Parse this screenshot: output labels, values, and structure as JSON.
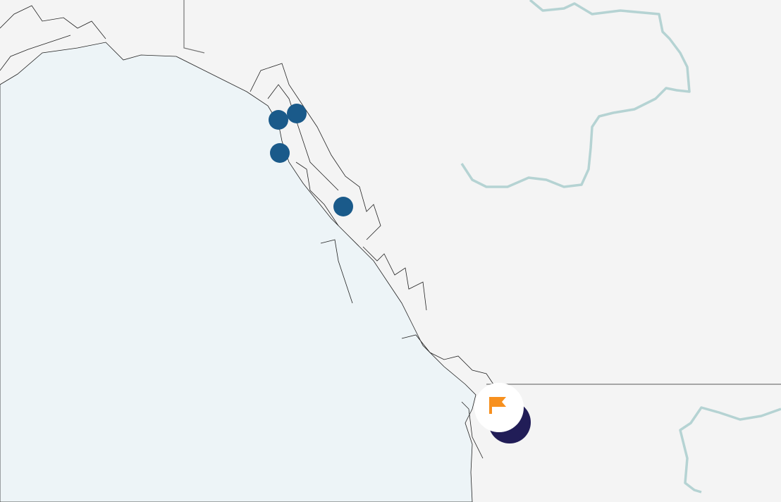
{
  "map": {
    "colors": {
      "land": "#f4f4f4",
      "ocean": "#edf4f7",
      "coastline": "#222222",
      "border": "#777777",
      "river": "#b5d3d3",
      "cluster_marker": "#1a5a8a",
      "selected_marker": "#211d57",
      "flag": "#f7901e",
      "highlight_halo": "#ffffff"
    },
    "markers": [
      {
        "type": "location",
        "icon": "circle-marker"
      },
      {
        "type": "location",
        "icon": "circle-marker"
      },
      {
        "type": "location",
        "icon": "circle-marker"
      },
      {
        "type": "location",
        "icon": "circle-marker"
      }
    ],
    "selected_marker": {
      "icon": "flag-icon"
    }
  }
}
